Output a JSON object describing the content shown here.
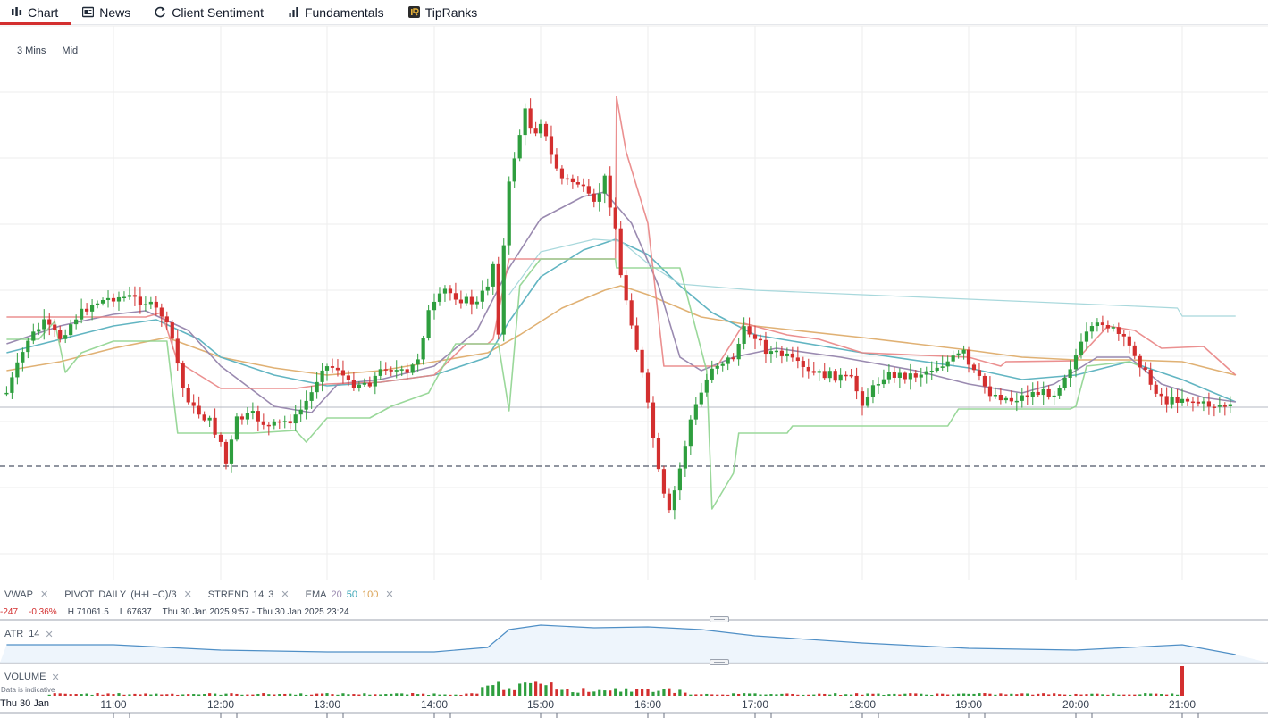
{
  "tabs": [
    {
      "label": "Chart",
      "icon": "candles-icon",
      "active": true
    },
    {
      "label": "News",
      "icon": "newspaper-icon",
      "active": false
    },
    {
      "label": "Client Sentiment",
      "icon": "refresh-icon",
      "active": false
    },
    {
      "label": "Fundamentals",
      "icon": "bar-chart-icon",
      "active": false
    },
    {
      "label": "TipRanks",
      "icon": "tipranks-logo-icon",
      "active": false
    }
  ],
  "timeframe": {
    "interval": "3 Mins",
    "price_type": "Mid"
  },
  "indicators": {
    "vwap": "VWAP",
    "pivot": {
      "name": "PIVOT",
      "period": "DAILY",
      "formula": "(H+L+C)/3"
    },
    "strend": {
      "name": "STREND",
      "p1": "14",
      "p2": "3"
    },
    "ema": {
      "name": "EMA",
      "p1": "20",
      "p2": "50",
      "p3": "100"
    },
    "close_symbol": "✕"
  },
  "ohlc": {
    "change": "-247",
    "change_pct": "-0.36%",
    "high": "H 71061.5",
    "low": "L 67637",
    "range": "Thu 30 Jan 2025 9:57 - Thu 30 Jan 2025 23:24"
  },
  "atr": {
    "name": "ATR",
    "period": "14"
  },
  "volume": {
    "name": "VOLUME",
    "note": "Data is indicative"
  },
  "x_axis": {
    "first": "Thu 30 Jan",
    "labels": [
      "11:00",
      "12:00",
      "13:00",
      "14:00",
      "15:00",
      "16:00",
      "17:00",
      "18:00",
      "19:00",
      "20:00",
      "21:00"
    ]
  },
  "colors": {
    "up": "#2e9e3e",
    "down": "#d32f2f",
    "ema20": "#9a8ab0",
    "ema50": "#62b5c2",
    "ema100": "#e0b174",
    "pivot": "#e98484",
    "strend": "#8fd48f",
    "vwap": "#a8d8dc",
    "atr": "#4f8fc6",
    "grid": "#eeeeee"
  },
  "chart_data": {
    "type": "candlestick",
    "interval": "3 Mins",
    "x_ticks": [
      "11:00",
      "12:00",
      "13:00",
      "14:00",
      "15:00",
      "16:00",
      "17:00",
      "18:00",
      "19:00",
      "20:00",
      "21:00"
    ],
    "series": [
      {
        "name": "VWAP"
      },
      {
        "name": "PIVOT"
      },
      {
        "name": "STREND"
      },
      {
        "name": "EMA 20"
      },
      {
        "name": "EMA 50"
      },
      {
        "name": "EMA 100"
      }
    ],
    "summary": {
      "change": -247,
      "change_pct": -0.36,
      "high": 71061.5,
      "low": 67637
    }
  }
}
